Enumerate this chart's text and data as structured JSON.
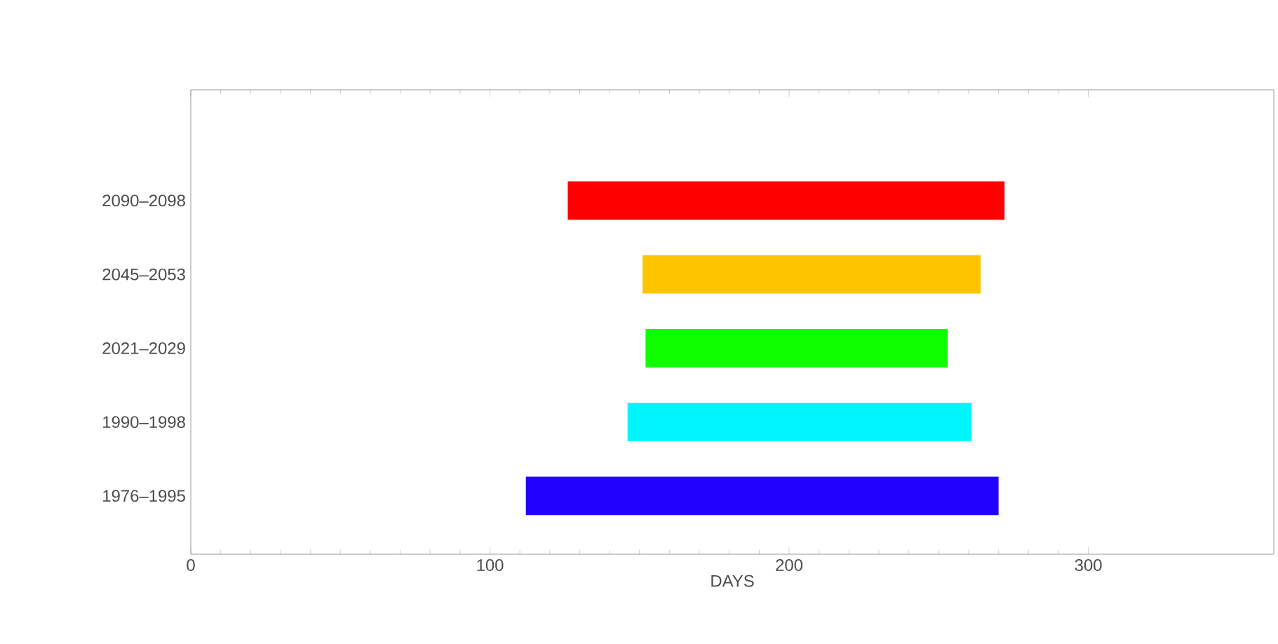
{
  "chart_data": {
    "type": "bar",
    "orientation": "horizontal",
    "xlabel": "DAYS",
    "categories": [
      "2090–2098",
      "2045–2053",
      "2021–2029",
      "1990–1998",
      "1976–1995"
    ],
    "base": [
      126,
      151,
      152,
      146,
      112
    ],
    "values": [
      146,
      113,
      101,
      115,
      158
    ],
    "colors": [
      "#ff0000",
      "#ffc400",
      "#10ff00",
      "#00f6ff",
      "#2200ff"
    ],
    "xlim": [
      0,
      362
    ],
    "xticks": [
      0,
      100,
      200,
      300
    ],
    "grid": false
  }
}
